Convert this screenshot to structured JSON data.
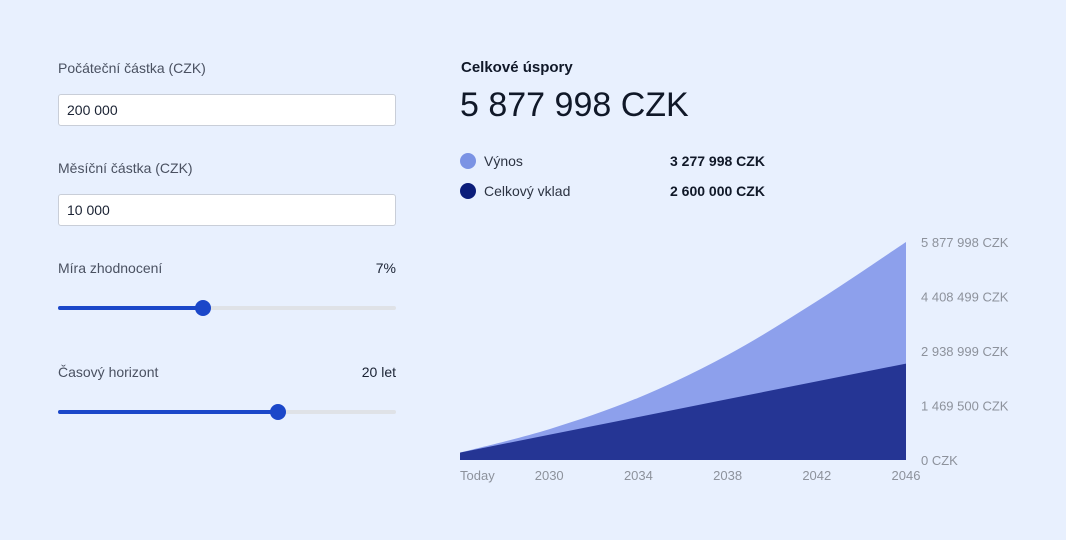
{
  "controls": {
    "initial_amount": {
      "label": "Počáteční částka (CZK)",
      "value": "200 000"
    },
    "monthly_amount": {
      "label": "Měsíční částka (CZK)",
      "value": "10 000"
    },
    "rate": {
      "label": "Míra zhodnocení",
      "value_text": "7%",
      "fraction": 0.43
    },
    "horizon": {
      "label": "Časový horizont",
      "value_text": "20 let",
      "fraction": 0.65
    }
  },
  "summary": {
    "title": "Celkové úspory",
    "total": "5 877 998 CZK",
    "legend": [
      {
        "label": "Výnos",
        "value": "3 277 998 CZK",
        "color": "#7b93e4"
      },
      {
        "label": "Celkový vklad",
        "value": "2 600 000 CZK",
        "color": "#0b1d7a"
      }
    ]
  },
  "chart_data": {
    "type": "area",
    "stacked": true,
    "x": [
      "Today",
      "2030",
      "2034",
      "2038",
      "2042",
      "2046"
    ],
    "x_values": [
      2026,
      2030,
      2034,
      2038,
      2042,
      2046
    ],
    "ylim": [
      0,
      5877998
    ],
    "yticks": [
      0,
      1469500,
      2938999,
      4408499,
      5877998
    ],
    "ytick_labels": [
      "0 CZK",
      "1 469 500 CZK",
      "2 938 999 CZK",
      "4 408 499 CZK",
      "5 877 998 CZK"
    ],
    "series": [
      {
        "name": "Celkový vklad",
        "color": "#253594",
        "values": [
          200000,
          680000,
          1160000,
          1640000,
          2120000,
          2600000
        ]
      },
      {
        "name": "Výnos",
        "color": "#8da0ec",
        "values": [
          0,
          150000,
          520000,
          1190000,
          2160000,
          3277998
        ]
      }
    ]
  }
}
